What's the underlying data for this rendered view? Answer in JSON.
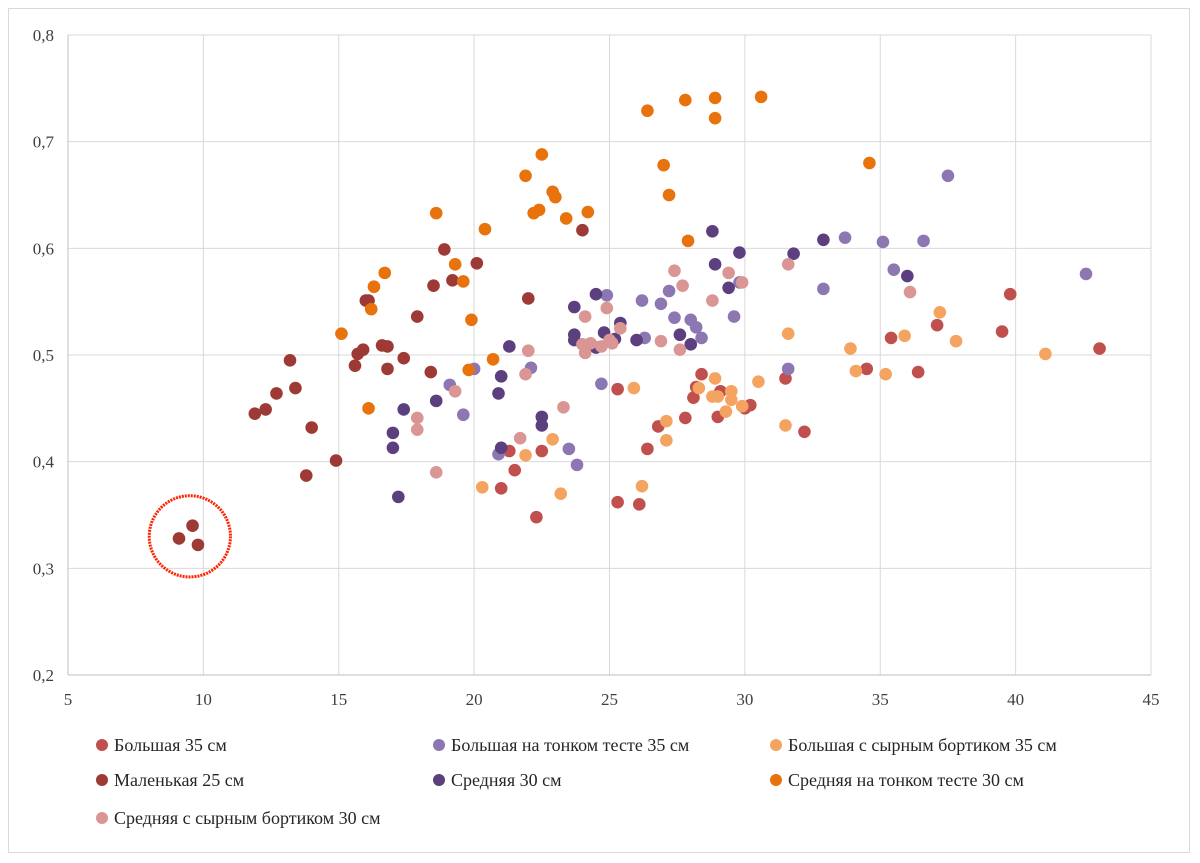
{
  "chart_data": {
    "type": "scatter",
    "title": "",
    "xlabel": "",
    "ylabel": "",
    "xlim": [
      5,
      45
    ],
    "ylim": [
      0.2,
      0.8
    ],
    "x_ticks": [
      "5",
      "10",
      "15",
      "20",
      "25",
      "30",
      "35",
      "40",
      "45"
    ],
    "y_ticks": [
      "0,2",
      "0,3",
      "0,4",
      "0,5",
      "0,6",
      "0,7",
      "0,8"
    ],
    "x_tick_values": [
      5,
      10,
      15,
      20,
      25,
      30,
      35,
      40,
      45
    ],
    "y_tick_values": [
      0.2,
      0.3,
      0.4,
      0.5,
      0.6,
      0.7,
      0.8
    ],
    "grid": true,
    "legend_position": "bottom",
    "annotation": {
      "type": "circle",
      "center": [
        9.5,
        0.33
      ],
      "radius_x_units": 1.5,
      "color": "#ff2200",
      "description": ""
    },
    "series": [
      {
        "name": "Большая 35 см",
        "color": "#c0504d",
        "points": [
          [
            21.0,
            0.375
          ],
          [
            21.3,
            0.41
          ],
          [
            21.5,
            0.392
          ],
          [
            22.3,
            0.348
          ],
          [
            22.5,
            0.41
          ],
          [
            25.3,
            0.468
          ],
          [
            25.3,
            0.362
          ],
          [
            26.1,
            0.36
          ],
          [
            26.4,
            0.412
          ],
          [
            26.8,
            0.433
          ],
          [
            27.8,
            0.441
          ],
          [
            28.1,
            0.46
          ],
          [
            28.2,
            0.47
          ],
          [
            28.4,
            0.482
          ],
          [
            29.0,
            0.442
          ],
          [
            29.1,
            0.466
          ],
          [
            30.2,
            0.453
          ],
          [
            31.5,
            0.478
          ],
          [
            32.2,
            0.428
          ],
          [
            34.5,
            0.487
          ],
          [
            35.4,
            0.516
          ],
          [
            36.4,
            0.484
          ],
          [
            37.1,
            0.528
          ],
          [
            39.5,
            0.522
          ],
          [
            39.8,
            0.557
          ],
          [
            43.1,
            0.506
          ],
          [
            30.0,
            0.45
          ]
        ]
      },
      {
        "name": "Большая на тонком тесте 35 см",
        "color": "#8c77b3",
        "points": [
          [
            19.1,
            0.472
          ],
          [
            19.6,
            0.444
          ],
          [
            20.0,
            0.487
          ],
          [
            20.9,
            0.407
          ],
          [
            22.1,
            0.488
          ],
          [
            23.5,
            0.412
          ],
          [
            23.8,
            0.397
          ],
          [
            24.7,
            0.473
          ],
          [
            24.9,
            0.556
          ],
          [
            26.2,
            0.551
          ],
          [
            26.3,
            0.516
          ],
          [
            26.9,
            0.548
          ],
          [
            27.2,
            0.56
          ],
          [
            27.4,
            0.535
          ],
          [
            28.0,
            0.533
          ],
          [
            28.2,
            0.526
          ],
          [
            28.4,
            0.516
          ],
          [
            29.6,
            0.536
          ],
          [
            29.8,
            0.568
          ],
          [
            31.6,
            0.487
          ],
          [
            32.9,
            0.562
          ],
          [
            33.7,
            0.61
          ],
          [
            35.1,
            0.606
          ],
          [
            35.5,
            0.58
          ],
          [
            36.6,
            0.607
          ],
          [
            37.5,
            0.668
          ],
          [
            42.6,
            0.576
          ]
        ]
      },
      {
        "name": "Большая с сырным бортиком 35 см",
        "color": "#f4a460",
        "points": [
          [
            20.3,
            0.376
          ],
          [
            21.9,
            0.406
          ],
          [
            22.9,
            0.421
          ],
          [
            23.2,
            0.37
          ],
          [
            25.9,
            0.469
          ],
          [
            26.2,
            0.377
          ],
          [
            27.1,
            0.438
          ],
          [
            27.1,
            0.42
          ],
          [
            28.3,
            0.469
          ],
          [
            28.8,
            0.461
          ],
          [
            28.9,
            0.478
          ],
          [
            29.0,
            0.461
          ],
          [
            29.3,
            0.447
          ],
          [
            29.5,
            0.466
          ],
          [
            29.5,
            0.458
          ],
          [
            29.9,
            0.452
          ],
          [
            30.5,
            0.475
          ],
          [
            31.5,
            0.434
          ],
          [
            31.6,
            0.52
          ],
          [
            33.9,
            0.506
          ],
          [
            34.1,
            0.485
          ],
          [
            35.2,
            0.482
          ],
          [
            35.9,
            0.518
          ],
          [
            37.2,
            0.54
          ],
          [
            37.8,
            0.513
          ],
          [
            41.1,
            0.501
          ]
        ]
      },
      {
        "name": "Маленькая 25 см",
        "color": "#9e3a35",
        "points": [
          [
            9.1,
            0.328
          ],
          [
            9.6,
            0.34
          ],
          [
            9.8,
            0.322
          ],
          [
            11.9,
            0.445
          ],
          [
            12.3,
            0.449
          ],
          [
            12.7,
            0.464
          ],
          [
            13.2,
            0.495
          ],
          [
            13.4,
            0.469
          ],
          [
            13.8,
            0.387
          ],
          [
            14.0,
            0.432
          ],
          [
            14.9,
            0.401
          ],
          [
            15.6,
            0.49
          ],
          [
            15.7,
            0.501
          ],
          [
            15.9,
            0.505
          ],
          [
            16.0,
            0.551
          ],
          [
            16.1,
            0.551
          ],
          [
            16.6,
            0.509
          ],
          [
            16.8,
            0.508
          ],
          [
            16.8,
            0.487
          ],
          [
            17.4,
            0.497
          ],
          [
            17.9,
            0.536
          ],
          [
            18.4,
            0.484
          ],
          [
            18.5,
            0.565
          ],
          [
            18.9,
            0.599
          ],
          [
            19.2,
            0.57
          ],
          [
            20.1,
            0.586
          ],
          [
            22.0,
            0.553
          ],
          [
            24.0,
            0.617
          ]
        ]
      },
      {
        "name": "Средняя 30 см",
        "color": "#5b3f7e",
        "points": [
          [
            17.0,
            0.413
          ],
          [
            17.0,
            0.427
          ],
          [
            17.2,
            0.367
          ],
          [
            17.4,
            0.449
          ],
          [
            18.6,
            0.457
          ],
          [
            20.9,
            0.464
          ],
          [
            21.0,
            0.48
          ],
          [
            21.0,
            0.413
          ],
          [
            21.3,
            0.508
          ],
          [
            22.5,
            0.442
          ],
          [
            22.5,
            0.434
          ],
          [
            23.7,
            0.519
          ],
          [
            23.7,
            0.545
          ],
          [
            23.7,
            0.514
          ],
          [
            24.5,
            0.507
          ],
          [
            24.5,
            0.557
          ],
          [
            24.8,
            0.521
          ],
          [
            25.2,
            0.515
          ],
          [
            25.4,
            0.53
          ],
          [
            26.0,
            0.514
          ],
          [
            27.6,
            0.519
          ],
          [
            28.0,
            0.51
          ],
          [
            28.8,
            0.616
          ],
          [
            28.9,
            0.585
          ],
          [
            29.4,
            0.563
          ],
          [
            29.8,
            0.596
          ],
          [
            31.8,
            0.595
          ],
          [
            32.9,
            0.608
          ],
          [
            36.0,
            0.574
          ]
        ]
      },
      {
        "name": "Средняя на тонком тесте 30 см",
        "color": "#e8720c",
        "points": [
          [
            15.1,
            0.52
          ],
          [
            16.1,
            0.45
          ],
          [
            16.2,
            0.543
          ],
          [
            16.3,
            0.564
          ],
          [
            16.7,
            0.577
          ],
          [
            18.6,
            0.633
          ],
          [
            19.3,
            0.585
          ],
          [
            19.6,
            0.569
          ],
          [
            19.8,
            0.486
          ],
          [
            19.9,
            0.533
          ],
          [
            20.4,
            0.618
          ],
          [
            20.7,
            0.496
          ],
          [
            21.9,
            0.668
          ],
          [
            22.2,
            0.633
          ],
          [
            22.4,
            0.636
          ],
          [
            22.5,
            0.688
          ],
          [
            22.9,
            0.653
          ],
          [
            23.0,
            0.648
          ],
          [
            23.4,
            0.628
          ],
          [
            24.2,
            0.634
          ],
          [
            26.4,
            0.729
          ],
          [
            27.0,
            0.678
          ],
          [
            27.2,
            0.65
          ],
          [
            27.8,
            0.739
          ],
          [
            27.9,
            0.607
          ],
          [
            28.9,
            0.741
          ],
          [
            28.9,
            0.722
          ],
          [
            30.6,
            0.742
          ],
          [
            34.6,
            0.68
          ]
        ]
      },
      {
        "name": "Средняя с сырным бортиком 30 см",
        "color": "#d99694",
        "points": [
          [
            17.9,
            0.441
          ],
          [
            17.9,
            0.43
          ],
          [
            18.6,
            0.39
          ],
          [
            19.3,
            0.466
          ],
          [
            21.7,
            0.422
          ],
          [
            21.9,
            0.482
          ],
          [
            22.0,
            0.504
          ],
          [
            23.3,
            0.451
          ],
          [
            24.0,
            0.51
          ],
          [
            24.1,
            0.536
          ],
          [
            24.1,
            0.502
          ],
          [
            24.3,
            0.511
          ],
          [
            24.7,
            0.508
          ],
          [
            24.9,
            0.544
          ],
          [
            25.0,
            0.514
          ],
          [
            25.1,
            0.511
          ],
          [
            25.4,
            0.525
          ],
          [
            26.9,
            0.513
          ],
          [
            27.4,
            0.579
          ],
          [
            27.6,
            0.505
          ],
          [
            27.7,
            0.565
          ],
          [
            28.8,
            0.551
          ],
          [
            29.4,
            0.577
          ],
          [
            29.9,
            0.568
          ],
          [
            31.6,
            0.585
          ],
          [
            36.1,
            0.559
          ]
        ]
      }
    ]
  },
  "legend_items": [
    {
      "label": "Большая 35 см",
      "color": "#c0504d"
    },
    {
      "label": "Большая на тонком тесте 35 см",
      "color": "#8c77b3"
    },
    {
      "label": "Большая с сырным бортиком 35 см",
      "color": "#f4a460"
    },
    {
      "label": "Маленькая 25 см",
      "color": "#9e3a35"
    },
    {
      "label": "Средняя 30 см",
      "color": "#5b3f7e"
    },
    {
      "label": "Средняя на тонком тесте 30 см",
      "color": "#e8720c"
    },
    {
      "label": "Средняя с сырным бортиком 30 см",
      "color": "#d99694"
    }
  ]
}
